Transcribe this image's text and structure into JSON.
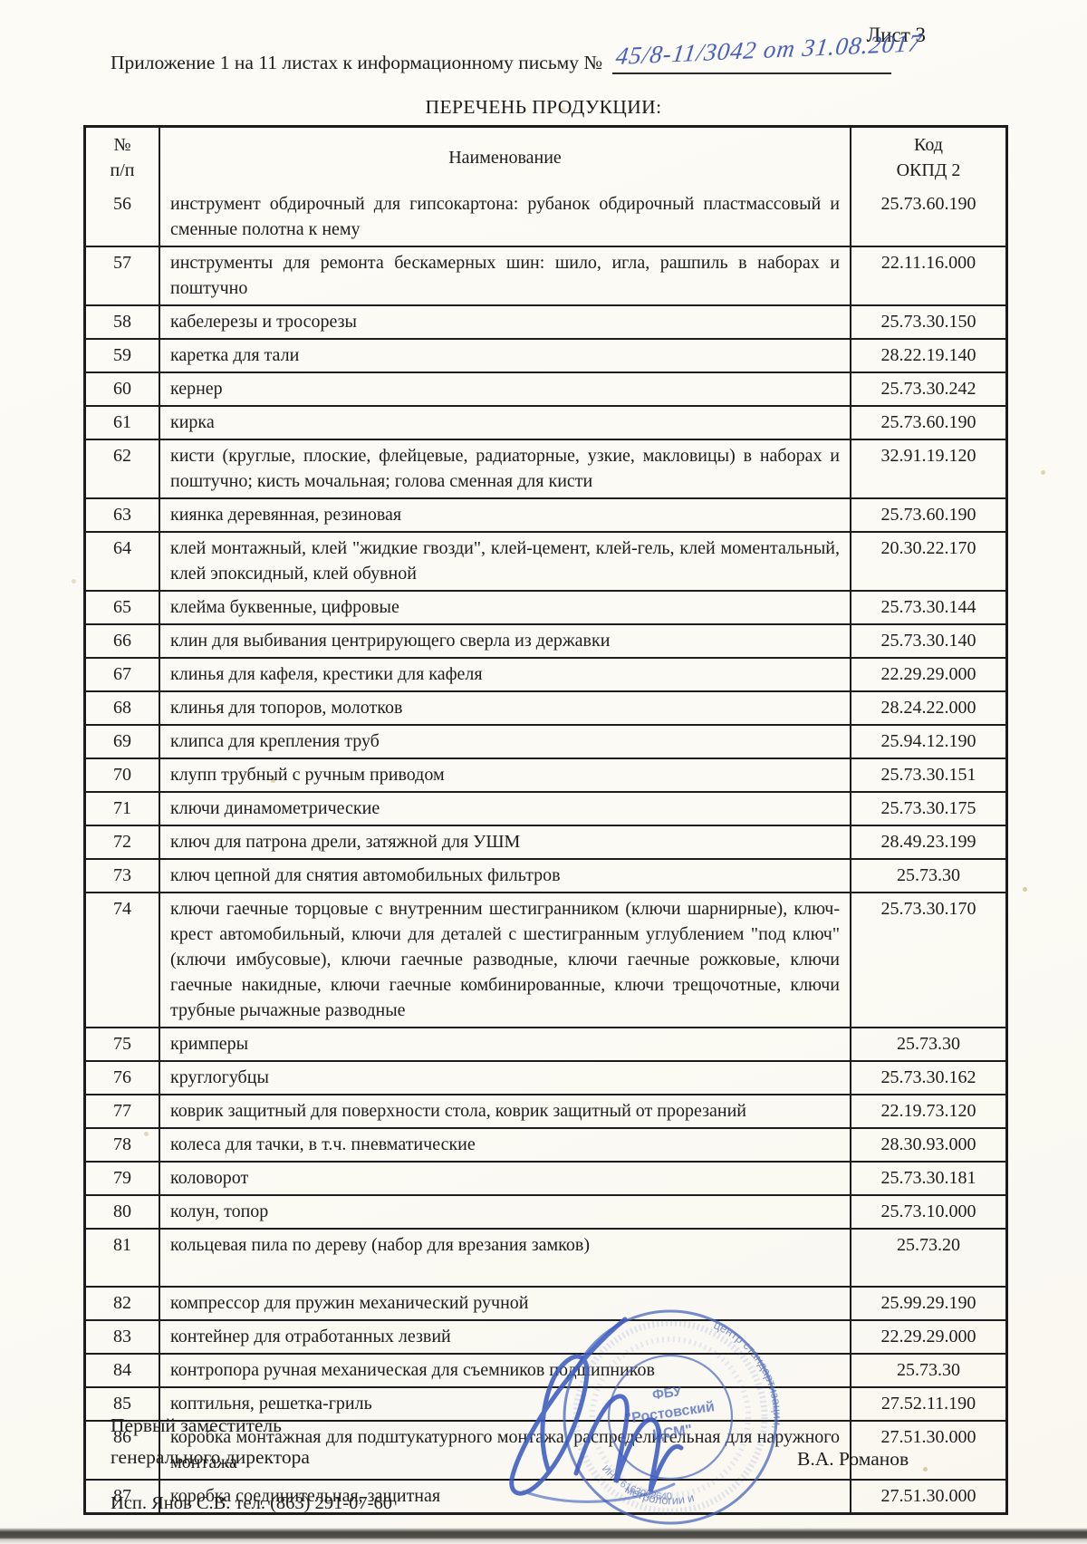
{
  "page": {
    "sheet_label": "Лист 3",
    "header_line": "Приложение 1 на 11 листах к информационному письму №",
    "handwritten_number": "45/8-11/3042 от 31.08.2017",
    "title": "ПЕРЕЧЕНЬ ПРОДУКЦИИ:"
  },
  "table": {
    "header": {
      "num_line1": "№",
      "num_line2": "п/п",
      "name": "Наименование",
      "code_line1": "Код",
      "code_line2": "ОКПД 2"
    },
    "rows": [
      {
        "num": "56",
        "name": "инструмент обдирочный для гипсокартона: рубанок обдирочный пластмассовый и сменные полотна к нему",
        "code": "25.73.60.190",
        "tall": false
      },
      {
        "num": "57",
        "name": "инструменты для ремонта бескамерных шин: шило, игла, рашпиль в наборах и поштучно",
        "code": "22.11.16.000",
        "tall": false
      },
      {
        "num": "58",
        "name": "кабелерезы и тросорезы",
        "code": "25.73.30.150",
        "tall": false
      },
      {
        "num": "59",
        "name": "каретка для тали",
        "code": "28.22.19.140",
        "tall": false
      },
      {
        "num": "60",
        "name": "кернер",
        "code": "25.73.30.242",
        "tall": false
      },
      {
        "num": "61",
        "name": "кирка",
        "code": "25.73.60.190",
        "tall": false
      },
      {
        "num": "62",
        "name": "кисти (круглые, плоские, флейцевые, радиаторные, узкие, макловицы) в наборах и поштучно; кисть мочальная; голова сменная для кисти",
        "code": "32.91.19.120",
        "tall": false
      },
      {
        "num": "63",
        "name": "киянка деревянная, резиновая",
        "code": "25.73.60.190",
        "tall": false
      },
      {
        "num": "64",
        "name": "клей монтажный, клей \"жидкие гвозди\", клей-цемент, клей-гель, клей моментальный, клей эпоксидный, клей обувной",
        "code": "20.30.22.170",
        "tall": false
      },
      {
        "num": "65",
        "name": "клейма буквенные, цифровые",
        "code": "25.73.30.144",
        "tall": false
      },
      {
        "num": "66",
        "name": "клин для выбивания центрирующего сверла из державки",
        "code": "25.73.30.140",
        "tall": false
      },
      {
        "num": "67",
        "name": "клинья для кафеля, крестики для кафеля",
        "code": "22.29.29.000",
        "tall": false
      },
      {
        "num": "68",
        "name": "клинья для топоров, молотков",
        "code": "28.24.22.000",
        "tall": false
      },
      {
        "num": "69",
        "name": "клипса для крепления труб",
        "code": "25.94.12.190",
        "tall": false
      },
      {
        "num": "70",
        "name": "клупп трубный с ручным приводом",
        "code": "25.73.30.151",
        "tall": false
      },
      {
        "num": "71",
        "name": "ключи динамометрические",
        "code": "25.73.30.175",
        "tall": false
      },
      {
        "num": "72",
        "name": "ключ для патрона дрели, затяжной для УШМ",
        "code": "28.49.23.199",
        "tall": false
      },
      {
        "num": "73",
        "name": "ключ цепной для снятия автомобильных фильтров",
        "code": "25.73.30",
        "tall": false
      },
      {
        "num": "74",
        "name": "ключи гаечные торцовые с внутренним шестигранником (ключи шарнирные), ключ-крест автомобильный, ключи для деталей с шестигранным углублением \"под ключ\" (ключи имбусовые), ключи гаечные разводные, ключи гаечные рожковые, ключи гаечные накидные, ключи гаечные комбинированные, ключи трещочотные, ключи трубные рычажные разводные",
        "code": "25.73.30.170",
        "tall": false
      },
      {
        "num": "75",
        "name": "кримперы",
        "code": "25.73.30",
        "tall": false
      },
      {
        "num": "76",
        "name": "круглогубцы",
        "code": "25.73.30.162",
        "tall": false
      },
      {
        "num": "77",
        "name": "коврик защитный для поверхности стола, коврик защитный от прорезаний",
        "code": "22.19.73.120",
        "tall": false
      },
      {
        "num": "78",
        "name": "колеса для тачки, в т.ч. пневматические",
        "code": "28.30.93.000",
        "tall": false
      },
      {
        "num": "79",
        "name": "коловорот",
        "code": "25.73.30.181",
        "tall": false
      },
      {
        "num": "80",
        "name": "колун, топор",
        "code": "25.73.10.000",
        "tall": false
      },
      {
        "num": "81",
        "name": "кольцевая пила по дереву (набор для врезания замков)",
        "code": "25.73.20",
        "tall": true
      },
      {
        "num": "82",
        "name": "компрессор для пружин механический ручной",
        "code": "25.99.29.190",
        "tall": false
      },
      {
        "num": "83",
        "name": "контейнер для отработанных лезвий",
        "code": "22.29.29.000",
        "tall": false
      },
      {
        "num": "84",
        "name": "контропора ручная механическая для съемников подшипников",
        "code": "25.73.30",
        "tall": false
      },
      {
        "num": "85",
        "name": "коптильня, решетка-гриль",
        "code": "27.52.11.190",
        "tall": false
      },
      {
        "num": "86",
        "name": "коробка монтажная для подштукатурного монтажа, распределительная для наружного монтажа",
        "code": "27.51.30.000",
        "tall": false
      },
      {
        "num": "87",
        "name": "коробка соединительная, защитная",
        "code": "27.51.30.000",
        "tall": false
      }
    ]
  },
  "footer": {
    "position_line1": "Первый заместитель",
    "position_line2": "генерального директора",
    "signer_name": "В.А. Романов",
    "executor_line": "Исп. Янов С.В. тел. (863) 291-07-60"
  },
  "stamp": {
    "center_line1": "ФБУ",
    "center_line2": "\"Ростовский",
    "center_line3": "ЦСМ\"",
    "ring_line1": "центр стандартизации,",
    "ring_line2": "метрологии и",
    "ring_line3": "ИНН 6163008640",
    "ink_color": "#4a66bd"
  },
  "colors": {
    "paper": "#fcfbf6",
    "text": "#1d1d1d",
    "table_border": "#1c1c1c",
    "handwriting_ink": "#3753b6",
    "stamp_ink": "#4a66bd"
  }
}
